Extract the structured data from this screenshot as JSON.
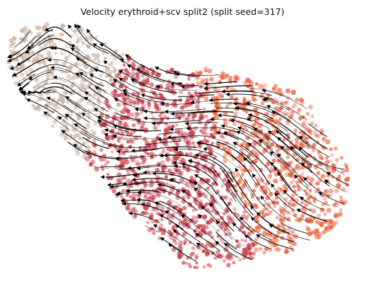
{
  "chart_data": {
    "type": "scatter",
    "subtype": "rna-velocity-embedding-stream",
    "title": "Velocity erythroid+scv split2 (split seed=317)",
    "xlabel": "",
    "ylabel": "",
    "axes_visible": false,
    "grid": false,
    "legend": "none",
    "colors": {
      "cluster_tan": "#cdb4a2",
      "cluster_crimson": "#c93b46",
      "cluster_orange": "#ee6440",
      "streamlines": "#000000"
    },
    "clusters": [
      {
        "color_key": "cluster_tan",
        "approx_share": 0.25
      },
      {
        "color_key": "cluster_crimson",
        "approx_share": 0.37
      },
      {
        "color_key": "cluster_orange",
        "approx_share": 0.38
      }
    ],
    "stream_direction": "right-to-left, converging toward upper-left region",
    "point_count_estimate": 6000
  }
}
